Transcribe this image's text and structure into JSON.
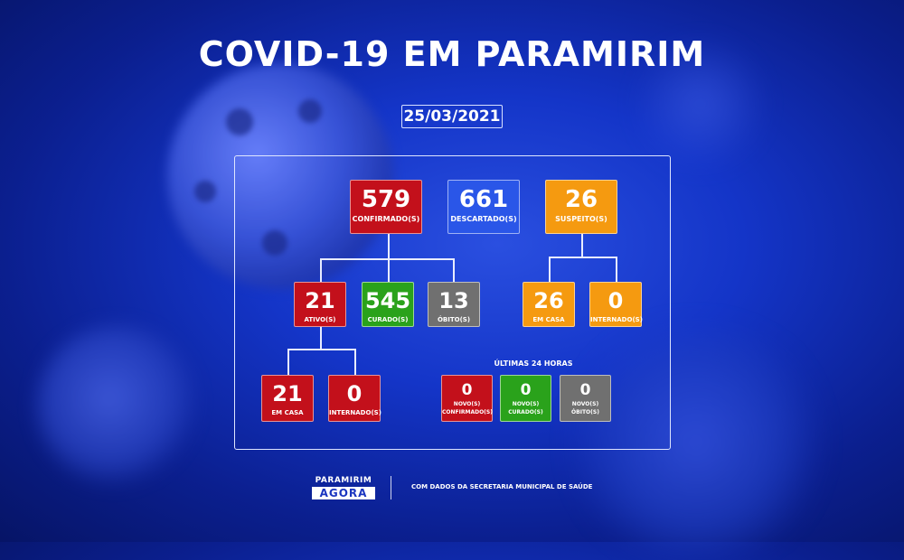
{
  "title": "COVID-19 EM PARAMIRIM",
  "date": "25/03/2021",
  "top": {
    "confirmed": {
      "value": "579",
      "label": "CONFIRMADO(S)"
    },
    "discarded": {
      "value": "661",
      "label": "DESCARTADO(S)"
    },
    "suspect": {
      "value": "26",
      "label": "SUSPEITO(S)"
    }
  },
  "confirmed_breakdown": {
    "active": {
      "value": "21",
      "label": "ATIVO(S)"
    },
    "cured": {
      "value": "545",
      "label": "CURADO(S)"
    },
    "deaths": {
      "value": "13",
      "label": "ÓBITO(S)"
    }
  },
  "suspect_breakdown": {
    "home": {
      "value": "26",
      "label": "EM CASA"
    },
    "hospital": {
      "value": "0",
      "label": "INTERNADO(S)"
    }
  },
  "active_breakdown": {
    "home": {
      "value": "21",
      "label": "EM CASA"
    },
    "hospital": {
      "value": "0",
      "label": "INTERNADO(S)"
    }
  },
  "last24": {
    "heading": "ÚLTIMAS 24 HORAS",
    "new_confirmed": {
      "value": "0",
      "label1": "NOVO(S)",
      "label2": "CONFIRMADO(S)"
    },
    "new_cured": {
      "value": "0",
      "label1": "NOVO(S)",
      "label2": "CURADO(S)"
    },
    "new_deaths": {
      "value": "0",
      "label1": "NOVO(S)",
      "label2": "ÓBITO(S)"
    }
  },
  "footer": {
    "logo_line1": "PARAMIRIM",
    "logo_line2": "AGORA",
    "source": "COM DADOS DA SECRETARIA MUNICIPAL DE SAÚDE"
  },
  "colors": {
    "red": "#c3101b",
    "blue": "#2a56e8",
    "orange": "#f59a10",
    "green": "#2aa21b",
    "gray": "#707070"
  }
}
